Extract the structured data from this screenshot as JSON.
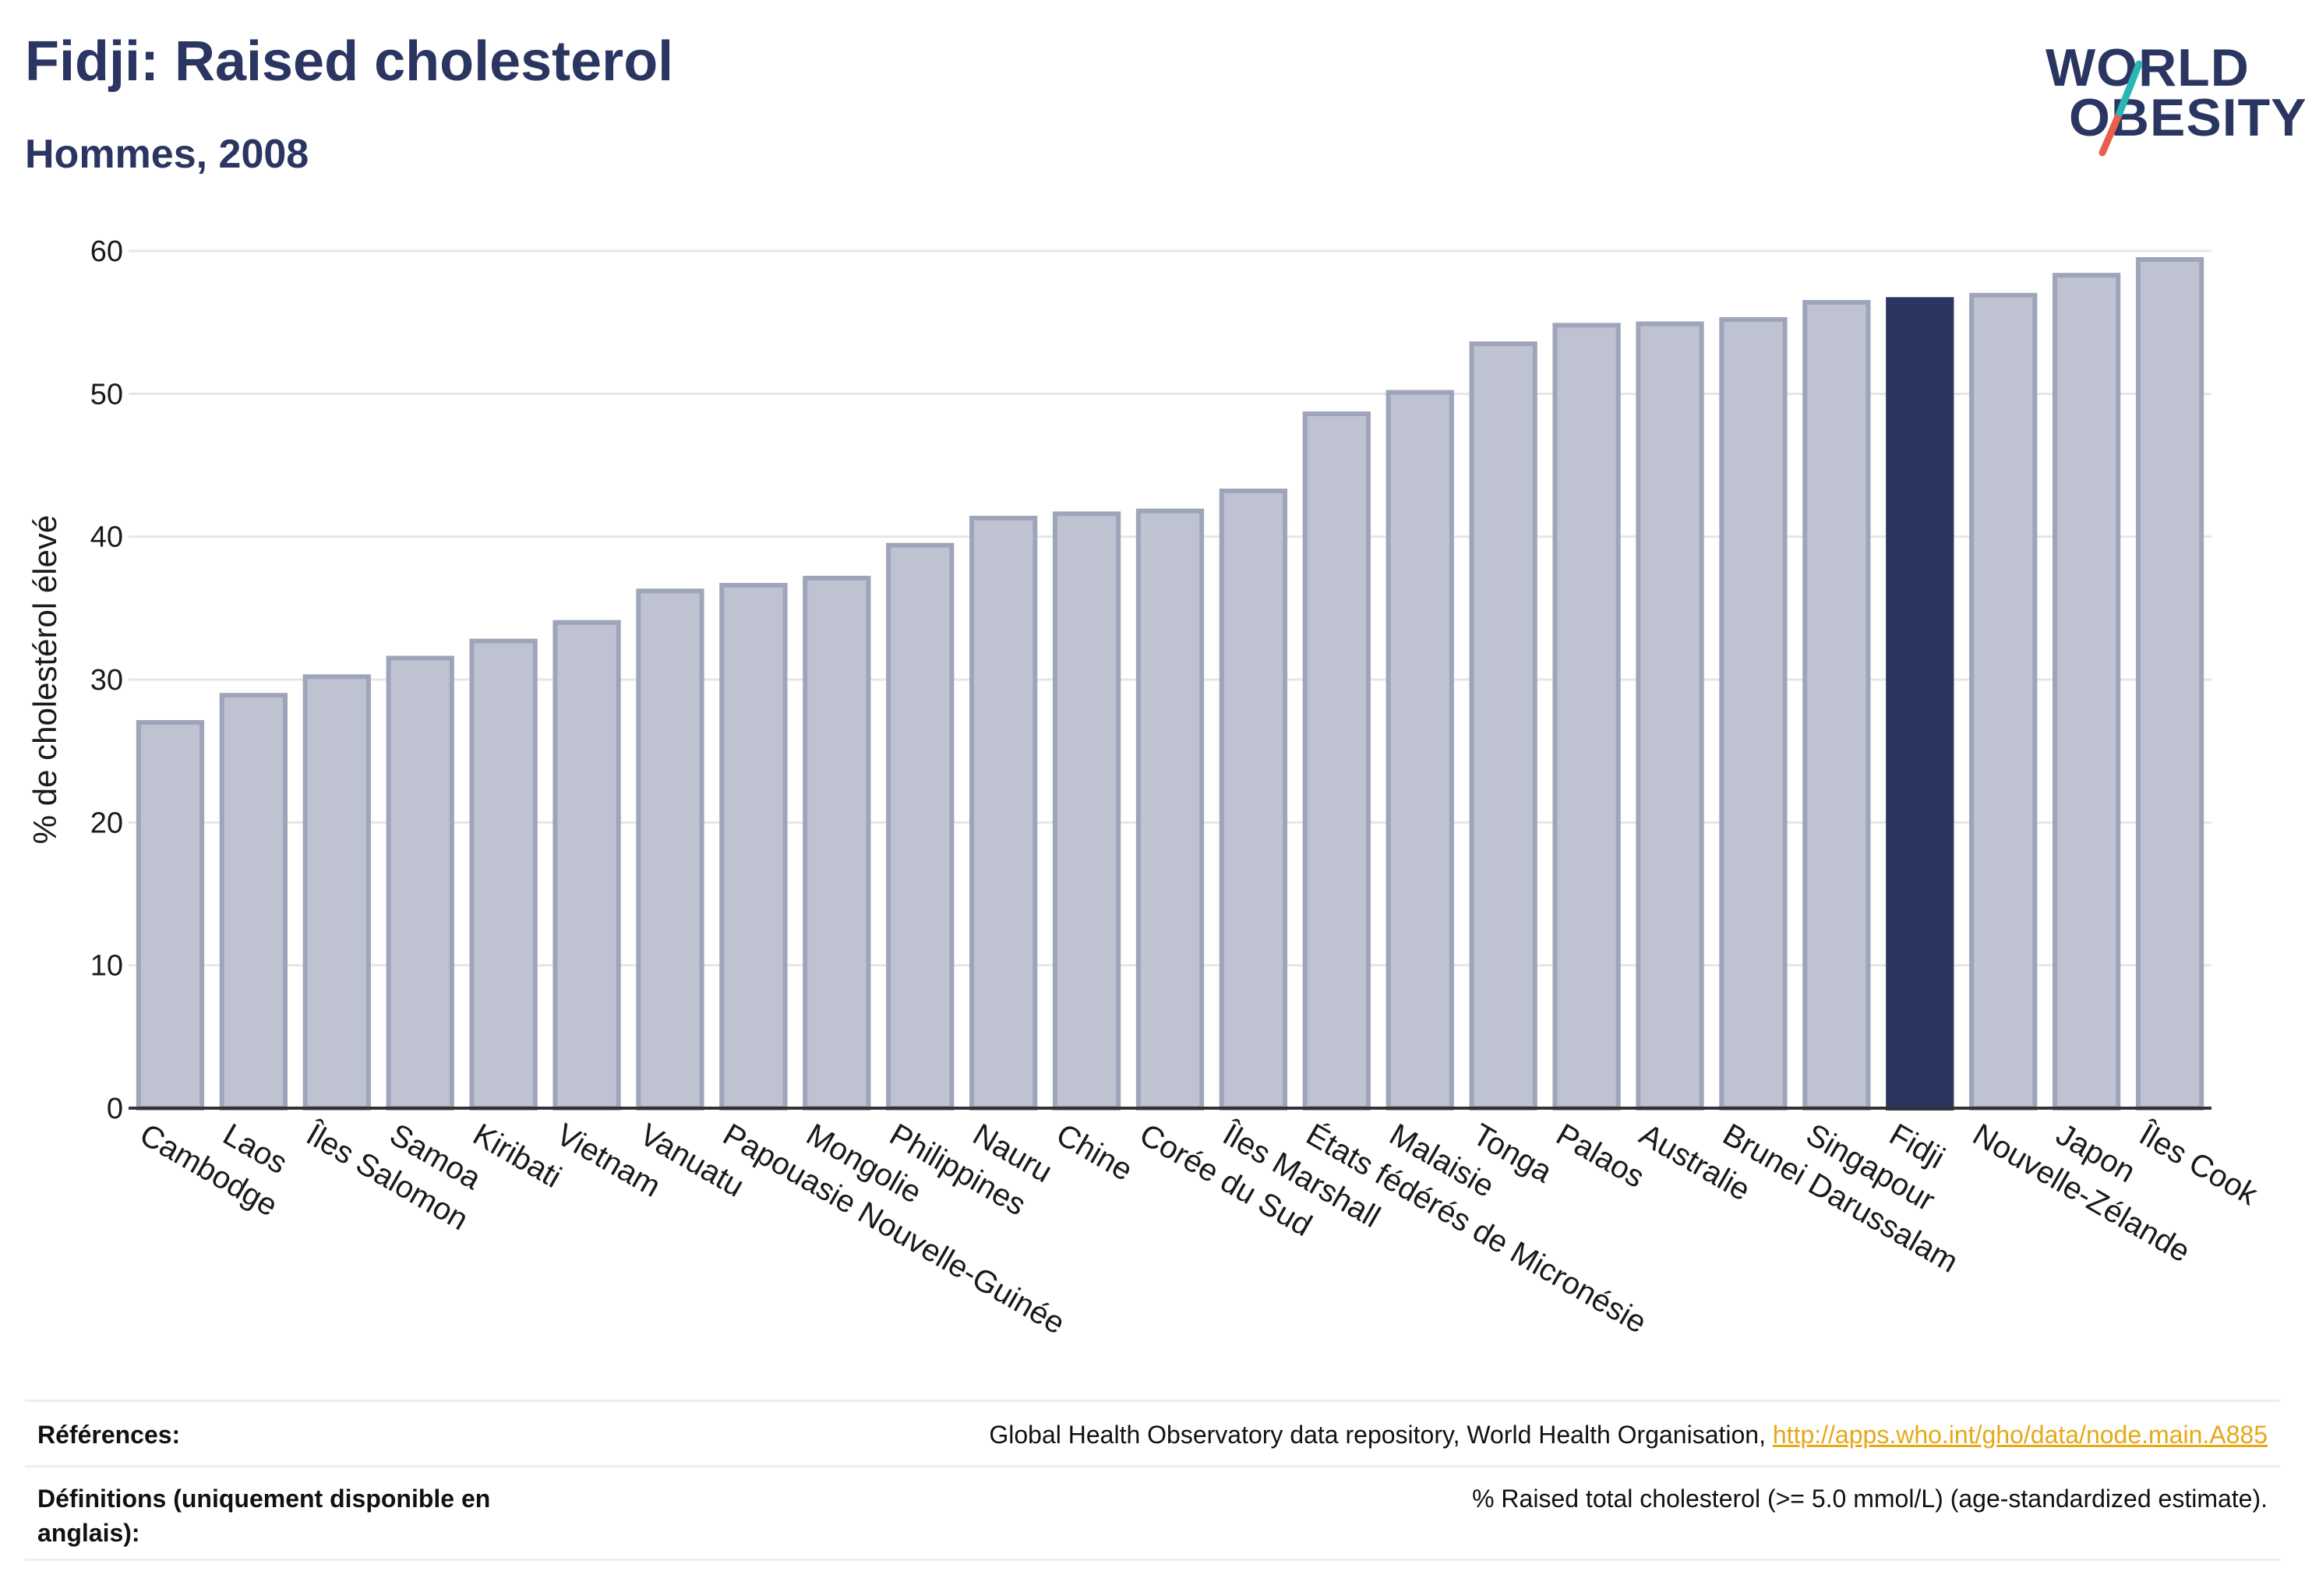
{
  "header": {
    "title": "Fidji: Raised cholesterol",
    "subtitle": "Hommes, 2008"
  },
  "logo": {
    "line1": "WORLD",
    "line2": "OBESITY",
    "colors": {
      "text": "#2b3561",
      "slash_top": "#2bb5b5",
      "slash_bottom": "#e8604c"
    }
  },
  "chart_data": {
    "type": "bar",
    "ylabel": "% de cholestérol élevé",
    "ylim": [
      0,
      60
    ],
    "yticks": [
      0,
      10,
      20,
      30,
      40,
      50,
      60
    ],
    "grid": true,
    "highlight": "Fidji",
    "colors": {
      "bar": "#bfc3d1",
      "bar_edge": "#9ea4ba",
      "highlight": "#2b3561"
    },
    "categories": [
      "Cambodge",
      "Laos",
      "Îles Salomon",
      "Samoa",
      "Kiribati",
      "Vietnam",
      "Vanuatu",
      "Papouasie Nouvelle-Guinée",
      "Mongolie",
      "Philippines",
      "Nauru",
      "Chine",
      "Corée du Sud",
      "Îles Marshall",
      "États fédérés de Micronésie",
      "Malaisie",
      "Tonga",
      "Palaos",
      "Australie",
      "Brunei Darussalam",
      "Singapour",
      "Fidji",
      "Nouvelle-Zélande",
      "Japon",
      "Îles Cook"
    ],
    "values": [
      27.0,
      28.9,
      30.2,
      31.5,
      32.7,
      34.0,
      36.2,
      36.6,
      37.1,
      39.4,
      41.3,
      41.6,
      41.8,
      43.2,
      48.6,
      50.1,
      53.5,
      54.8,
      54.9,
      55.2,
      56.4,
      56.6,
      56.9,
      58.3,
      59.4
    ]
  },
  "footer": {
    "references_label": "Références:",
    "references_text": "Global Health Observatory data repository, World Health Organisation, ",
    "references_link": "http://apps.who.int/gho/data/node.main.A885",
    "definitions_label": "Définitions (uniquement disponible en anglais):",
    "definitions_text": "% Raised total cholesterol (>= 5.0 mmol/L) (age-standardized estimate)."
  }
}
